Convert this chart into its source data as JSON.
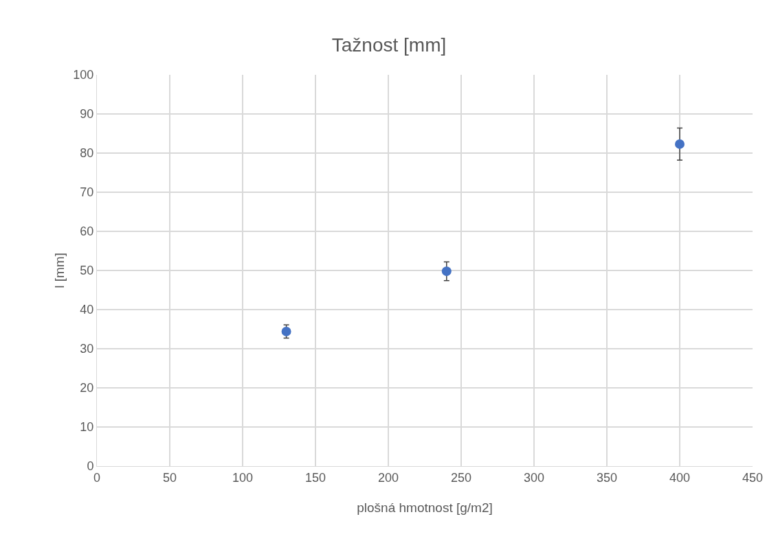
{
  "chart_data": {
    "type": "scatter",
    "title": "Tažnost [mm]",
    "xlabel": "plošná hmotnost [g/m2]",
    "ylabel": "l [mm]",
    "x": [
      130,
      240,
      400
    ],
    "series": [
      {
        "color": "#4472c4",
        "values": [
          34.4,
          49.8,
          82.3
        ],
        "errors": [
          1.7,
          2.4,
          4.1
        ]
      }
    ],
    "xlim": [
      0,
      450
    ],
    "xticks": [
      0,
      50,
      100,
      150,
      200,
      250,
      300,
      350,
      400,
      450
    ],
    "ylim": [
      0,
      100
    ],
    "yticks": [
      0,
      10,
      20,
      30,
      40,
      50,
      60,
      70,
      80,
      90,
      100
    ],
    "grid": true,
    "legend": false,
    "marker": "circle"
  }
}
